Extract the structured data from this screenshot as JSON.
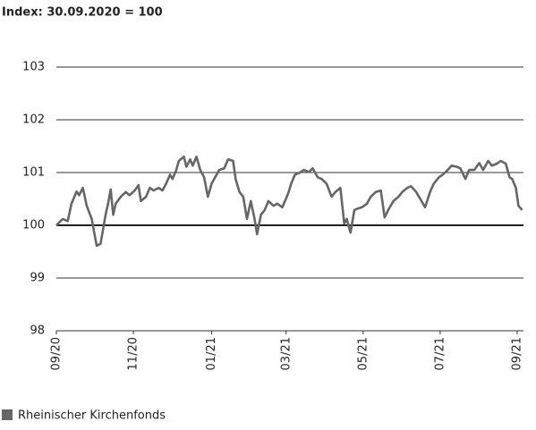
{
  "chart_data": {
    "type": "line",
    "title": "Index: 30.09.2020 = 100",
    "x": [
      0,
      5,
      9,
      12,
      16,
      18,
      21,
      24,
      28,
      30,
      32,
      35,
      39,
      41,
      43,
      45,
      47,
      51,
      55,
      58,
      62,
      65,
      67,
      71,
      74,
      77,
      81,
      84,
      87,
      90,
      92,
      95,
      97,
      101,
      103,
      106,
      108,
      111,
      114,
      117,
      120,
      123,
      125,
      129,
      133,
      136,
      140,
      142,
      145,
      148,
      151,
      154,
      157,
      159,
      162,
      165,
      168,
      172,
      175,
      179,
      182,
      184,
      186,
      189,
      193,
      196,
      200,
      203,
      207,
      210,
      214,
      218,
      221,
      225,
      228,
      230,
      233,
      236,
      239,
      242,
      246,
      249,
      253,
      257,
      260,
      264,
      267,
      271,
      274,
      278,
      281,
      285,
      288,
      292,
      296,
      299,
      303,
      306,
      310,
      313,
      317,
      320,
      324,
      327,
      331,
      335,
      338,
      342,
      345,
      349,
      352,
      356,
      359,
      361,
      364,
      366,
      369
    ],
    "series": [
      {
        "name": "Rheinischer Kirchenfonds",
        "color": "#666666",
        "values": [
          100.0,
          100.12,
          100.08,
          100.41,
          100.64,
          100.57,
          100.71,
          100.37,
          100.12,
          99.86,
          99.61,
          99.65,
          100.2,
          100.41,
          100.68,
          100.2,
          100.41,
          100.54,
          100.63,
          100.57,
          100.66,
          100.76,
          100.46,
          100.54,
          100.71,
          100.66,
          100.71,
          100.66,
          100.79,
          100.96,
          100.88,
          101.05,
          101.22,
          101.3,
          101.11,
          101.25,
          101.13,
          101.3,
          101.05,
          100.91,
          100.54,
          100.79,
          100.88,
          101.05,
          101.08,
          101.25,
          101.22,
          100.88,
          100.63,
          100.54,
          100.12,
          100.46,
          100.12,
          99.83,
          100.2,
          100.29,
          100.46,
          100.37,
          100.41,
          100.34,
          100.51,
          100.63,
          100.79,
          100.96,
          101.0,
          101.05,
          101.01,
          101.08,
          100.91,
          100.88,
          100.79,
          100.54,
          100.63,
          100.71,
          100.03,
          100.12,
          99.86,
          100.29,
          100.32,
          100.34,
          100.41,
          100.54,
          100.63,
          100.66,
          100.15,
          100.34,
          100.46,
          100.54,
          100.63,
          100.71,
          100.74,
          100.63,
          100.51,
          100.34,
          100.63,
          100.79,
          100.91,
          100.96,
          101.05,
          101.13,
          101.11,
          101.08,
          100.88,
          101.05,
          101.05,
          101.18,
          101.05,
          101.22,
          101.13,
          101.17,
          101.22,
          101.17,
          100.91,
          100.88,
          100.71,
          100.37,
          100.29
        ]
      }
    ],
    "xlim": [
      0,
      370
    ],
    "xticks": [
      {
        "value": 0,
        "label": "09/20"
      },
      {
        "value": 61,
        "label": "11/20"
      },
      {
        "value": 123,
        "label": "01/21"
      },
      {
        "value": 182,
        "label": "03/21"
      },
      {
        "value": 243,
        "label": "05/21"
      },
      {
        "value": 304,
        "label": "07/21"
      },
      {
        "value": 365,
        "label": "09/21"
      }
    ],
    "ylim": [
      98,
      103
    ],
    "yticks": [
      98,
      99,
      100,
      101,
      102,
      103
    ],
    "grid": true,
    "reference_line": 100,
    "legend": "bottom-left"
  }
}
